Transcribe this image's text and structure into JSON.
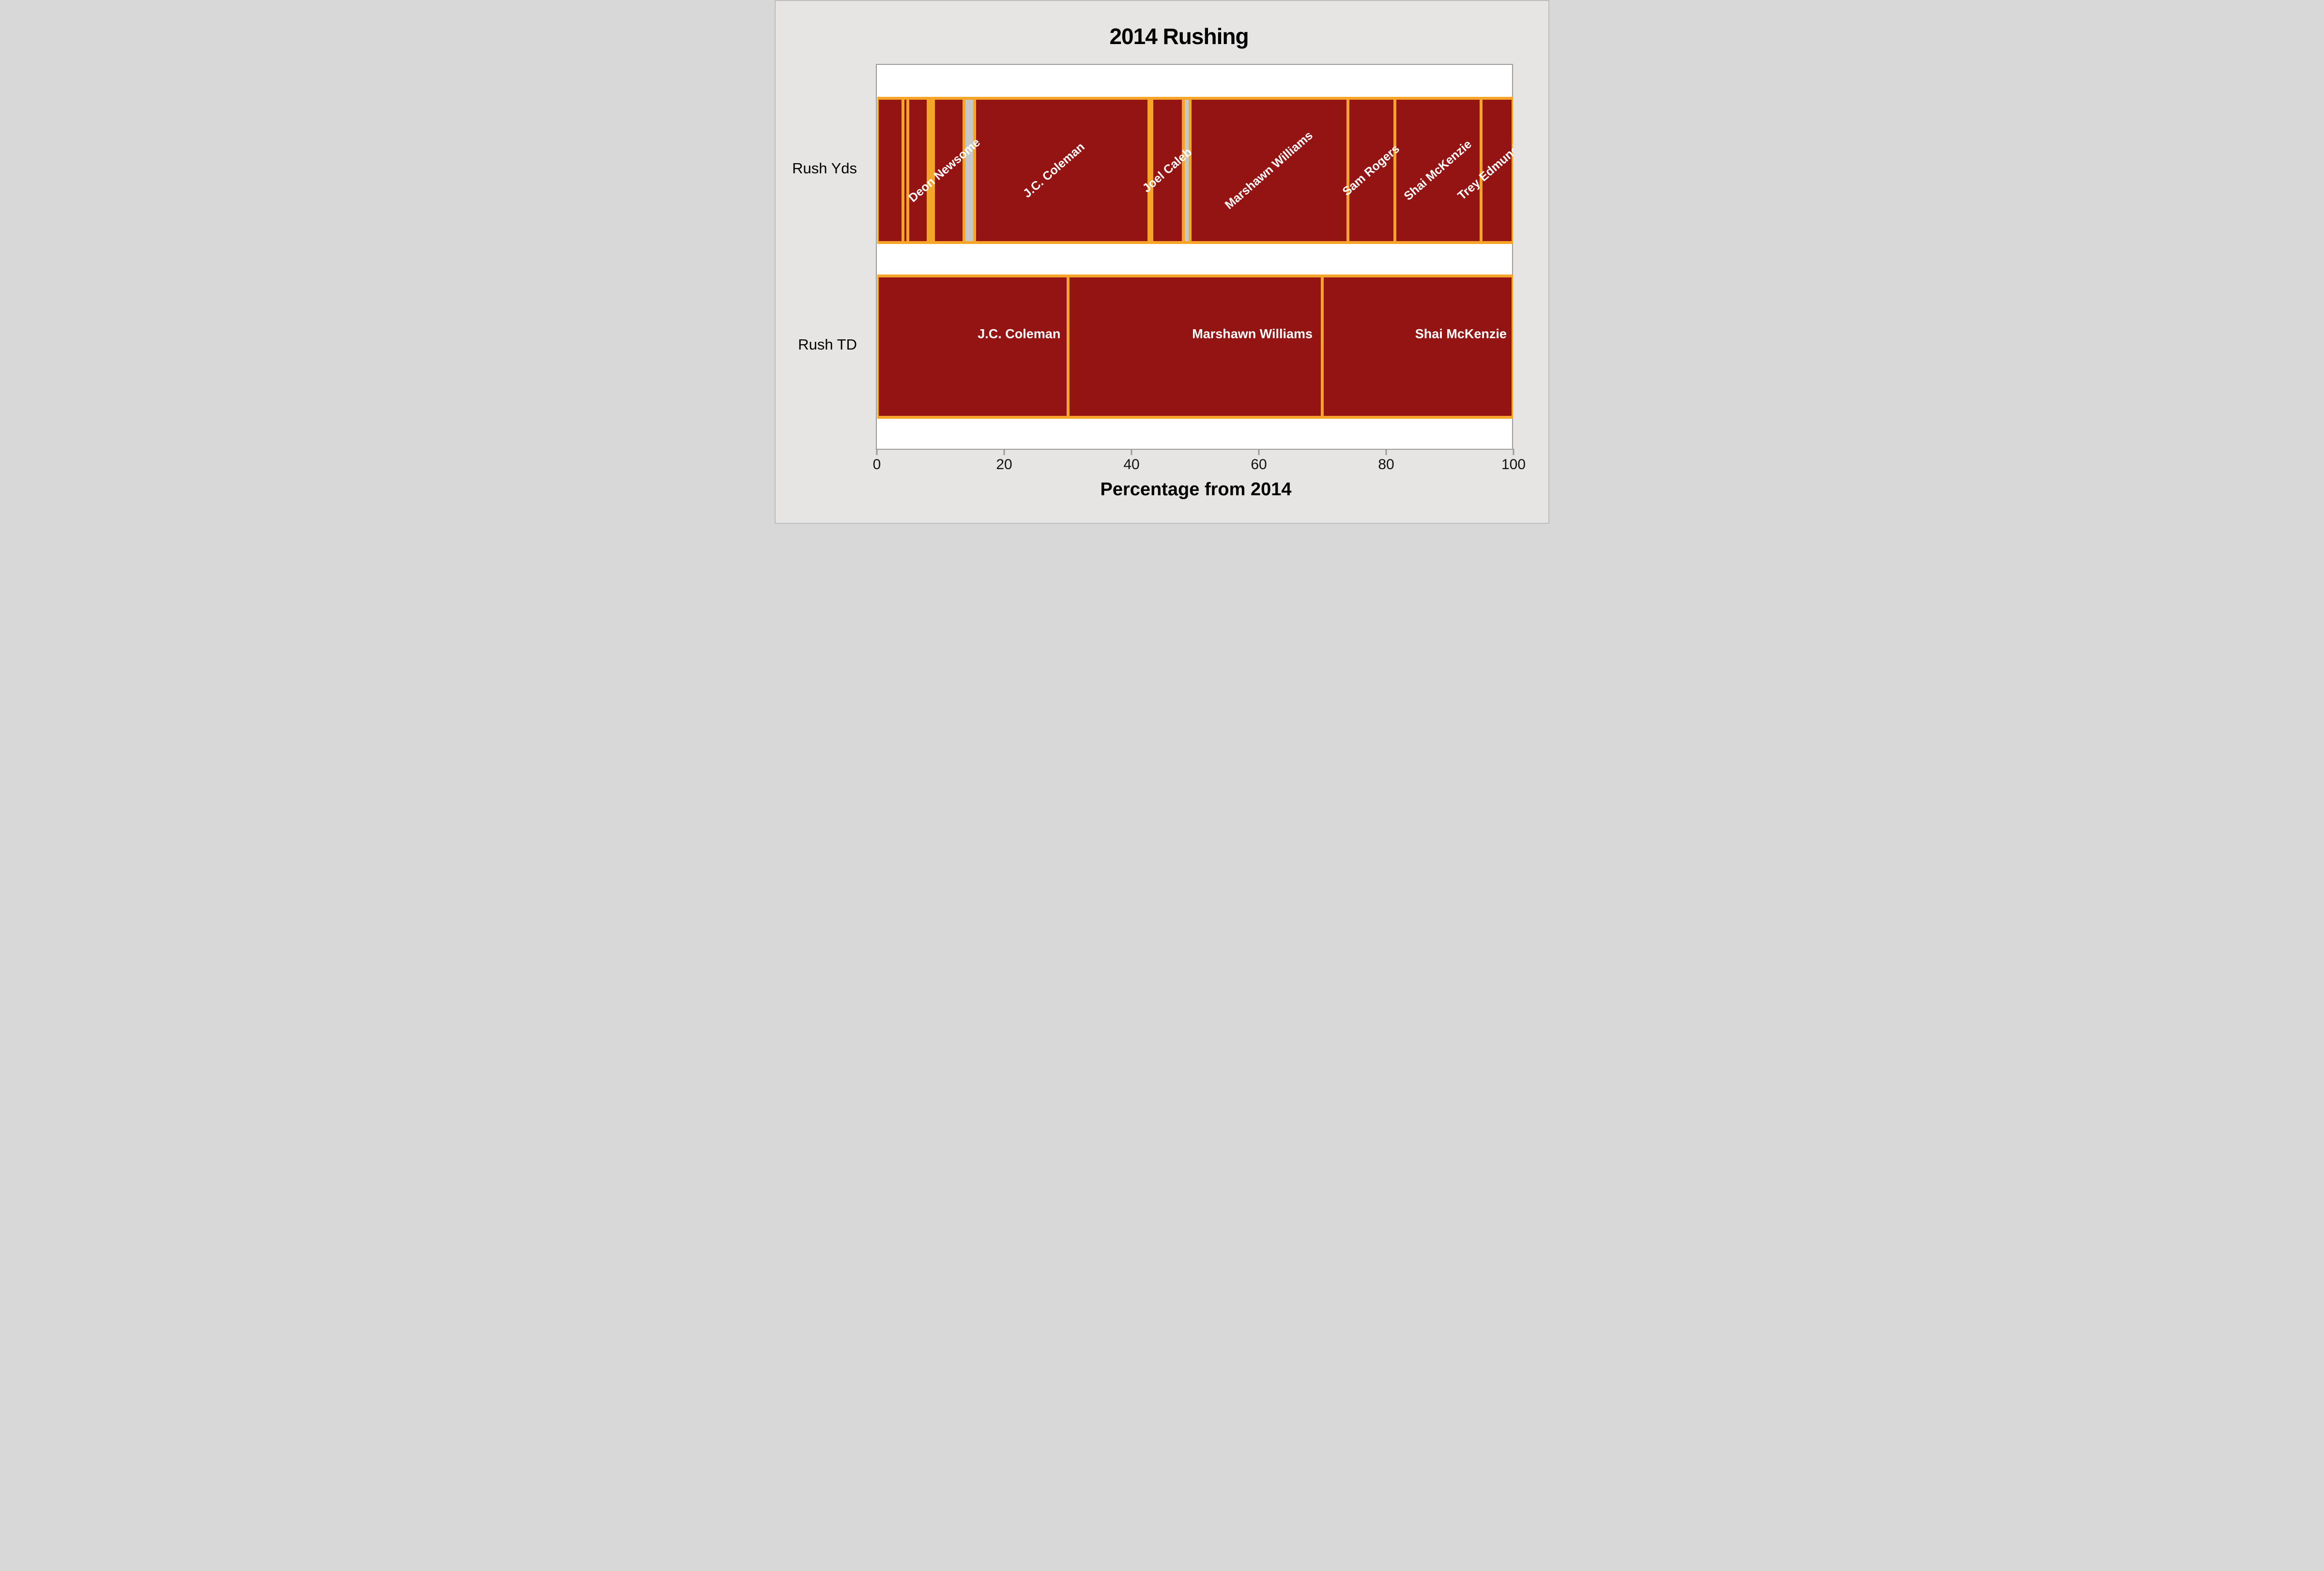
{
  "title": "2014 Rushing",
  "colors": {
    "bar_red": "#941413",
    "border_orange": "#F6A52B",
    "segment_gray": "#C7C7C7",
    "page_background": "#E6E5E4",
    "plot_background": "#ffffff",
    "plot_border": "#9A9A9A",
    "bar_label_text": "#ffffff",
    "axis_text": "#000000"
  },
  "chart_data": {
    "type": "bar",
    "subtype": "horizontal-stacked-100pct",
    "title": "2014 Rushing",
    "xlabel": "Percentage from 2014",
    "ylabel": "",
    "x_axis": {
      "title": "Percentage from 2014",
      "ticks": [
        0,
        20,
        40,
        60,
        80,
        100
      ],
      "range": [
        0,
        100
      ],
      "grid": false
    },
    "legend": "none",
    "categories": [
      "Rush Yds",
      "Rush TD"
    ],
    "rows": [
      {
        "category": "Rush Yds",
        "label_style": "diagonal",
        "segments": [
          {
            "label": "",
            "value": 4.0,
            "fill": "red"
          },
          {
            "label": "",
            "value": 0.8,
            "fill": "red"
          },
          {
            "label": "",
            "value": 3.2,
            "fill": "red"
          },
          {
            "label": "",
            "value": 0.8,
            "fill": "orange"
          },
          {
            "label": "Deon Newsome",
            "value": 4.8,
            "fill": "red",
            "label_x": 10.6
          },
          {
            "label": "",
            "value": 1.7,
            "fill": "gray"
          },
          {
            "label": "J.C. Coleman",
            "value": 27.4,
            "fill": "red",
            "label_x": 27.8
          },
          {
            "label": "",
            "value": 0.5,
            "fill": "red"
          },
          {
            "label": "Joel Caleb",
            "value": 4.9,
            "fill": "red"
          },
          {
            "label": "",
            "value": 1.1,
            "fill": "gray"
          },
          {
            "label": "Marshawn Williams",
            "value": 24.8,
            "fill": "red"
          },
          {
            "label": "Sam Rogers",
            "value": 7.4,
            "fill": "red"
          },
          {
            "label": "Shai McKenzie",
            "value": 13.6,
            "fill": "red"
          },
          {
            "label": "Trey Edmunds",
            "value": 5.0,
            "fill": "red",
            "label_x": 96.6
          }
        ]
      },
      {
        "category": "Rush TD",
        "label_style": "horizontal",
        "segments": [
          {
            "label": "J.C. Coleman",
            "value": 30,
            "fill": "red",
            "label_x": 22.3
          },
          {
            "label": "Marshawn Williams",
            "value": 40,
            "fill": "red",
            "label_x": 59.0
          },
          {
            "label": "Shai McKenzie",
            "value": 30,
            "fill": "red",
            "label_x": 91.8
          }
        ]
      }
    ]
  }
}
